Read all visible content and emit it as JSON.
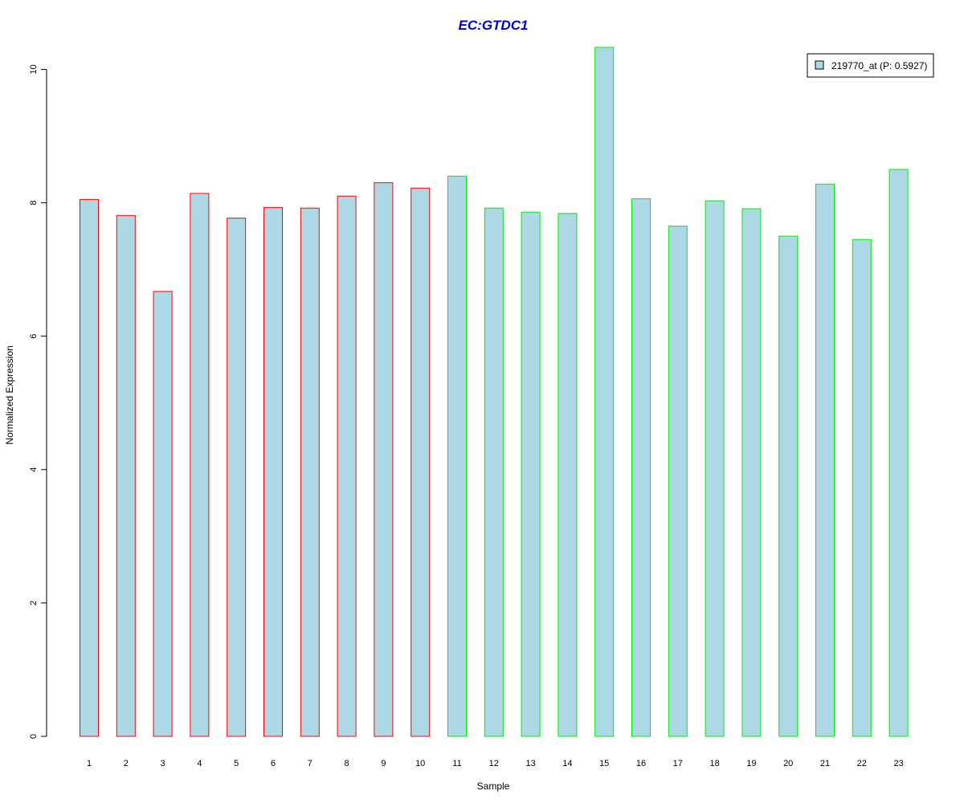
{
  "chart_data": {
    "type": "bar",
    "title": "EC:GTDC1",
    "xlabel": "Sample",
    "ylabel": "Normalized Expression",
    "categories": [
      "1",
      "2",
      "3",
      "4",
      "5",
      "6",
      "7",
      "8",
      "9",
      "10",
      "11",
      "12",
      "13",
      "14",
      "15",
      "16",
      "17",
      "18",
      "19",
      "20",
      "21",
      "22",
      "23"
    ],
    "series": [
      {
        "name": "219770_at (P: 0.5927)",
        "values": [
          8.05,
          7.81,
          6.67,
          8.14,
          7.77,
          7.93,
          7.92,
          8.1,
          8.3,
          8.22,
          8.4,
          7.92,
          7.86,
          7.84,
          10.33,
          8.06,
          7.65,
          8.03,
          7.91,
          7.5,
          8.28,
          7.45,
          8.5
        ]
      }
    ],
    "groups": [
      {
        "samples": [
          1,
          10
        ],
        "border_color": "#ff0000"
      },
      {
        "samples": [
          11,
          23
        ],
        "border_color": "#00ee00"
      }
    ],
    "ylim": [
      0,
      10.33
    ],
    "yticks": [
      "0",
      "2",
      "4",
      "6",
      "8",
      "10"
    ],
    "grid": false,
    "legend_position": "top-right",
    "colors": {
      "bar_fill": "#add8e6",
      "title": "#0000cc",
      "axis": "#000000"
    }
  }
}
